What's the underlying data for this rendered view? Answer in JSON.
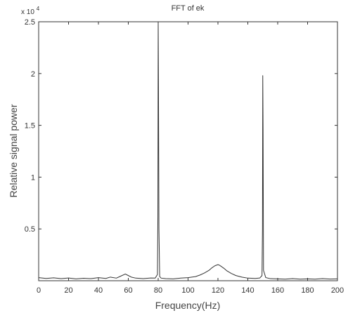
{
  "chart_data": {
    "type": "line",
    "title": "FFT of ek",
    "xlabel": "Frequency(Hz)",
    "ylabel": "Relative signal power",
    "y_multiplier_base": "x 10",
    "y_multiplier_exp": "4",
    "xlim": [
      0,
      200
    ],
    "ylim": [
      0,
      25000
    ],
    "x_ticks": [
      0,
      20,
      40,
      60,
      80,
      100,
      120,
      140,
      160,
      180,
      200
    ],
    "x_tick_labels": [
      "0",
      "20",
      "40",
      "60",
      "80",
      "100",
      "120",
      "140",
      "160",
      "180",
      "200"
    ],
    "y_ticks": [
      5000,
      10000,
      15000,
      20000,
      25000
    ],
    "y_tick_labels": [
      "0.5",
      "1",
      "1.5",
      "2",
      "2.5"
    ],
    "grid": false,
    "line_color": "#333333",
    "series": [
      {
        "x": [
          0,
          5,
          10,
          15,
          20,
          25,
          30,
          35,
          40,
          45,
          48,
          52,
          55,
          58,
          60,
          62,
          65,
          70,
          75,
          78,
          79.5,
          79.8,
          80,
          80.2,
          80.5,
          81,
          82,
          85,
          90,
          95,
          100,
          105,
          108,
          111,
          114,
          116,
          118,
          119,
          120,
          121,
          122,
          124,
          126,
          129,
          132,
          136,
          140,
          145,
          148,
          149.5,
          149.8,
          150,
          150.2,
          150.5,
          152,
          155,
          160,
          165,
          170,
          175,
          180,
          185,
          190,
          195,
          200
        ],
        "y": [
          300,
          220,
          280,
          200,
          260,
          180,
          240,
          200,
          300,
          220,
          350,
          250,
          450,
          650,
          500,
          350,
          250,
          200,
          260,
          250,
          600,
          6200,
          25000,
          18700,
          5000,
          400,
          250,
          200,
          180,
          250,
          300,
          400,
          550,
          750,
          1000,
          1250,
          1450,
          1500,
          1550,
          1500,
          1400,
          1200,
          950,
          700,
          500,
          350,
          250,
          220,
          260,
          500,
          5000,
          19800,
          14900,
          1000,
          300,
          200,
          180,
          150,
          200,
          150,
          180,
          150,
          200,
          160,
          180
        ]
      }
    ]
  }
}
